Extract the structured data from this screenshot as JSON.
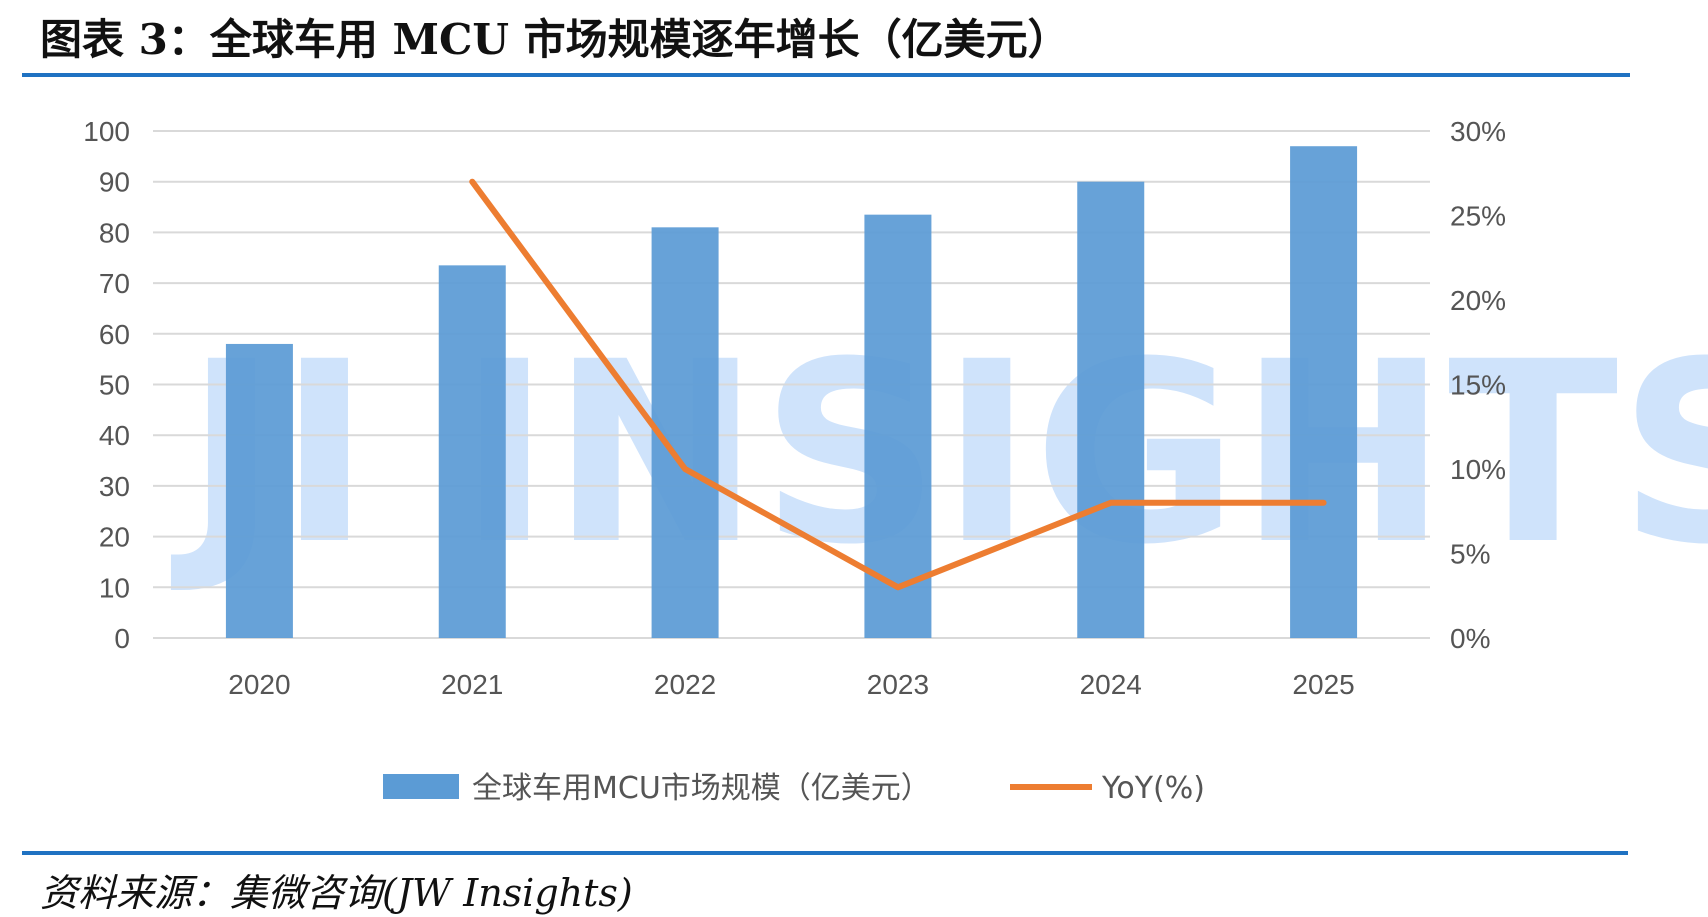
{
  "figure": {
    "title": "图表 3：全球车用 MCU 市场规模逐年增长（亿美元）",
    "source": "资料来源：集微咨询(JW Insights)",
    "watermark": "JI INSIGHTS",
    "colors": {
      "bar": "#5b9bd5",
      "line": "#ed7d31",
      "rule": "#1f72c2",
      "grid": "#d9d9d9"
    }
  },
  "chart_data": {
    "type": "bar",
    "categories": [
      "2020",
      "2021",
      "2022",
      "2023",
      "2024",
      "2025"
    ],
    "series": [
      {
        "name": "全球车用MCU市场规模（亿美元）",
        "type": "bar",
        "axis": "left",
        "values": [
          58,
          73.5,
          81,
          83.5,
          90,
          97
        ]
      },
      {
        "name": "YoY(%)",
        "type": "line",
        "axis": "right",
        "values": [
          null,
          27,
          10,
          3,
          8,
          8
        ]
      }
    ],
    "y_left": {
      "min": 0,
      "max": 100,
      "step": 10,
      "ticks": [
        "0",
        "10",
        "20",
        "30",
        "40",
        "50",
        "60",
        "70",
        "80",
        "90",
        "100"
      ]
    },
    "y_right": {
      "min": 0,
      "max": 30,
      "step": 5,
      "ticks": [
        "0%",
        "5%",
        "10%",
        "15%",
        "20%",
        "25%",
        "30%"
      ]
    },
    "grid": true,
    "legend": "bottom"
  }
}
